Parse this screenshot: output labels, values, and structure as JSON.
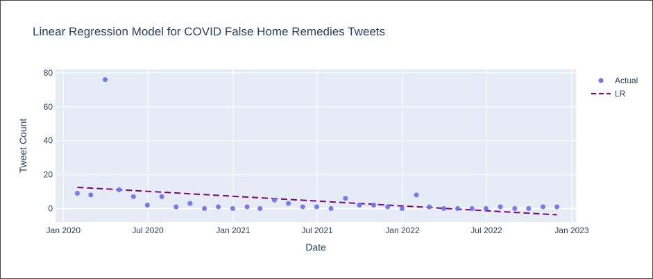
{
  "chart_data": {
    "type": "scatter",
    "title": "Linear Regression Model for COVID False Home Remedies Tweets",
    "xlabel": "Date",
    "ylabel": "Tweet Count",
    "xlim": [
      "2019-12-15",
      "2023-01-10"
    ],
    "ylim": [
      -8,
      82
    ],
    "x_ticks": [
      {
        "date": "2020-01-01",
        "label": "Jan 2020"
      },
      {
        "date": "2020-07-01",
        "label": "Jul 2020"
      },
      {
        "date": "2021-01-01",
        "label": "Jan 2021"
      },
      {
        "date": "2021-07-01",
        "label": "Jul 2021"
      },
      {
        "date": "2022-01-01",
        "label": "Jan 2022"
      },
      {
        "date": "2022-07-01",
        "label": "Jul 2022"
      },
      {
        "date": "2023-01-01",
        "label": "Jan 2023"
      }
    ],
    "y_ticks": [
      0,
      20,
      40,
      60,
      80
    ],
    "grid": true,
    "legend_position": "top-right",
    "series": [
      {
        "name": "Actual",
        "mode": "markers",
        "color": "#6f73f2",
        "x": [
          "2020-01-31",
          "2020-02-29",
          "2020-03-31",
          "2020-04-30",
          "2020-05-31",
          "2020-06-30",
          "2020-07-31",
          "2020-08-31",
          "2020-09-30",
          "2020-10-31",
          "2020-11-30",
          "2020-12-31",
          "2021-01-31",
          "2021-02-28",
          "2021-03-31",
          "2021-04-30",
          "2021-05-31",
          "2021-06-30",
          "2021-07-31",
          "2021-08-31",
          "2021-09-30",
          "2021-10-31",
          "2021-11-30",
          "2021-12-31",
          "2022-01-31",
          "2022-02-28",
          "2022-03-31",
          "2022-04-30",
          "2022-05-31",
          "2022-06-30",
          "2022-07-31",
          "2022-08-31",
          "2022-09-30",
          "2022-10-31",
          "2022-11-30"
        ],
        "y": [
          9,
          8,
          76,
          11,
          7,
          2,
          7,
          1,
          3,
          0,
          1,
          0,
          1,
          0,
          5,
          3,
          1,
          1,
          0,
          6,
          2,
          2,
          1,
          0,
          8,
          1,
          0,
          0,
          0,
          0,
          1,
          0,
          0,
          1,
          1
        ]
      },
      {
        "name": "LR",
        "mode": "lines",
        "dash": "dash",
        "color": "#800080",
        "x": [
          "2020-01-31",
          "2022-11-30"
        ],
        "y": [
          12.5,
          -3.7
        ]
      }
    ]
  }
}
